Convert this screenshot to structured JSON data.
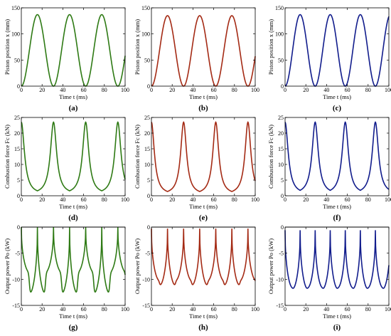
{
  "chart_data": [
    {
      "type": "line",
      "label": "(a)",
      "color": "#2e7a14",
      "xlabel": "Time t (ms)",
      "ylabel": "Piston position x (mm)",
      "xlim": [
        0,
        100
      ],
      "ylim": [
        0,
        150
      ],
      "xticks": [
        0,
        20,
        40,
        60,
        80,
        100
      ],
      "yticks": [
        0,
        50,
        100,
        150
      ],
      "series": [
        {
          "wave": "sine",
          "period": 31.0,
          "phase": 0,
          "min": 0,
          "max": 137
        }
      ]
    },
    {
      "type": "line",
      "label": "(b)",
      "color": "#a42a14",
      "xlabel": "Time t (ms)",
      "ylabel": "Piston position x (mm)",
      "xlim": [
        0,
        100
      ],
      "ylim": [
        0,
        150
      ],
      "xticks": [
        0,
        20,
        40,
        60,
        80,
        100
      ],
      "yticks": [
        0,
        50,
        100,
        150
      ],
      "series": [
        {
          "wave": "sine",
          "period": 31.0,
          "phase": 0,
          "min": 0,
          "max": 135
        }
      ]
    },
    {
      "type": "line",
      "label": "(c)",
      "color": "#111c8c",
      "xlabel": "Time t (ms)",
      "ylabel": "Piston position x (mm)",
      "xlim": [
        0,
        100
      ],
      "ylim": [
        0,
        150
      ],
      "xticks": [
        0,
        20,
        40,
        60,
        80,
        100
      ],
      "yticks": [
        0,
        50,
        100,
        150
      ],
      "series": [
        {
          "wave": "sine",
          "period": 29.0,
          "phase": 0,
          "min": 0,
          "max": 137
        }
      ]
    },
    {
      "type": "line",
      "label": "(d)",
      "color": "#2e7a14",
      "xlabel": "Time t (ms)",
      "ylabel": "Combustion force Fc (kN)",
      "xlim": [
        0,
        100
      ],
      "ylim": [
        0,
        25
      ],
      "xticks": [
        0,
        20,
        40,
        60,
        80,
        100
      ],
      "yticks": [
        0,
        5,
        10,
        15,
        20,
        25
      ],
      "series": [
        {
          "wave": "spike",
          "period": 31.0,
          "phase": 0,
          "min": 0.4,
          "max": 23.5,
          "width": 3.6
        }
      ]
    },
    {
      "type": "line",
      "label": "(e)",
      "color": "#a42a14",
      "xlabel": "Time t (ms)",
      "ylabel": "Combustion force Fc (kN)",
      "xlim": [
        0,
        100
      ],
      "ylim": [
        0,
        25
      ],
      "xticks": [
        0,
        20,
        40,
        60,
        80,
        100
      ],
      "yticks": [
        0,
        5,
        10,
        15,
        20,
        25
      ],
      "series": [
        {
          "wave": "spike",
          "period": 31.0,
          "phase": 0,
          "min": 0.3,
          "max": 23.5,
          "width": 3.4
        }
      ]
    },
    {
      "type": "line",
      "label": "(f)",
      "color": "#111c8c",
      "xlabel": "Time t (ms)",
      "ylabel": "Combustion force Fc (kN)",
      "xlim": [
        0,
        100
      ],
      "ylim": [
        0,
        25
      ],
      "xticks": [
        0,
        20,
        40,
        60,
        80,
        100
      ],
      "yticks": [
        0,
        5,
        10,
        15,
        20,
        25
      ],
      "series": [
        {
          "wave": "spike",
          "period": 29.0,
          "phase": 0,
          "min": 0.4,
          "max": 23.5,
          "width": 3.6
        }
      ]
    },
    {
      "type": "line",
      "label": "(g)",
      "color": "#2e7a14",
      "xlabel": "Time t (ms)",
      "ylabel": "Output power Po (kW)",
      "xlim": [
        0,
        100
      ],
      "ylim": [
        -15,
        0
      ],
      "xticks": [
        0,
        20,
        40,
        60,
        80,
        100
      ],
      "yticks": [
        -15,
        -10,
        -5,
        0
      ],
      "series": [
        {
          "wave": "power",
          "period": 31.0,
          "phase": 0,
          "top": 0,
          "low1": -12.8,
          "low2": -8.6
        }
      ]
    },
    {
      "type": "line",
      "label": "(h)",
      "color": "#a42a14",
      "xlabel": "Time t (ms)",
      "ylabel": "Output power Po (kW)",
      "xlim": [
        0,
        100
      ],
      "ylim": [
        -15,
        0
      ],
      "xticks": [
        0,
        20,
        40,
        60,
        80,
        100
      ],
      "yticks": [
        -15,
        -10,
        -5,
        0
      ],
      "series": [
        {
          "wave": "power",
          "period": 31.0,
          "phase": 0,
          "top": -0.3,
          "low1": -11.2,
          "low2": -10.2
        }
      ]
    },
    {
      "type": "line",
      "label": "(i)",
      "color": "#111c8c",
      "xlabel": "Time t (ms)",
      "ylabel": "Output power Po (kW)",
      "xlim": [
        0,
        100
      ],
      "ylim": [
        -15,
        0
      ],
      "xticks": [
        0,
        20,
        40,
        60,
        80,
        100
      ],
      "yticks": [
        -15,
        -10,
        -5,
        0
      ],
      "series": [
        {
          "wave": "power",
          "period": 29.0,
          "phase": 0,
          "top": -0.6,
          "low1": -11.8,
          "low2": -11.6
        }
      ]
    }
  ]
}
